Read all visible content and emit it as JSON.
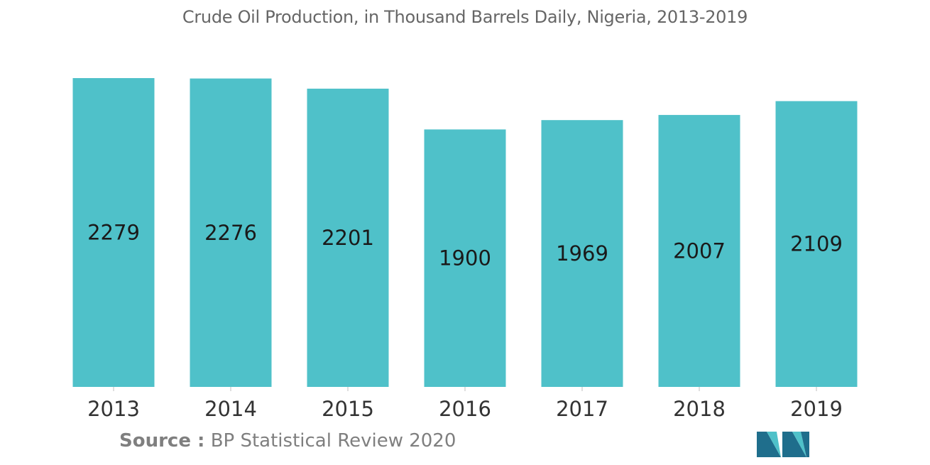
{
  "chart_data": {
    "type": "bar",
    "title": "Crude Oil Production, in Thousand Barrels Daily, Nigeria, 2013-2019",
    "categories": [
      "2013",
      "2014",
      "2015",
      "2016",
      "2017",
      "2018",
      "2019"
    ],
    "values": [
      2279,
      2276,
      2201,
      1900,
      1969,
      2007,
      2109
    ],
    "data_labels": [
      "2279",
      "2276",
      "2201",
      "1900",
      "1969",
      "2007",
      "2109"
    ],
    "xlabel": "",
    "ylabel": "",
    "ylim": [
      0,
      2279
    ],
    "grid": false,
    "legend": "none",
    "bar_color": "#4fc1c9"
  },
  "source": {
    "label": "Source :",
    "text": "BP Statistical Review 2020"
  },
  "colors": {
    "title": "#666666",
    "source": "#7f7f7f",
    "label": "#1a1a1a",
    "logo_dark": "#1f6e8c",
    "logo_light": "#4fc1c9"
  },
  "logo": {
    "icon": "mordor-intelligence-logo-icon"
  }
}
